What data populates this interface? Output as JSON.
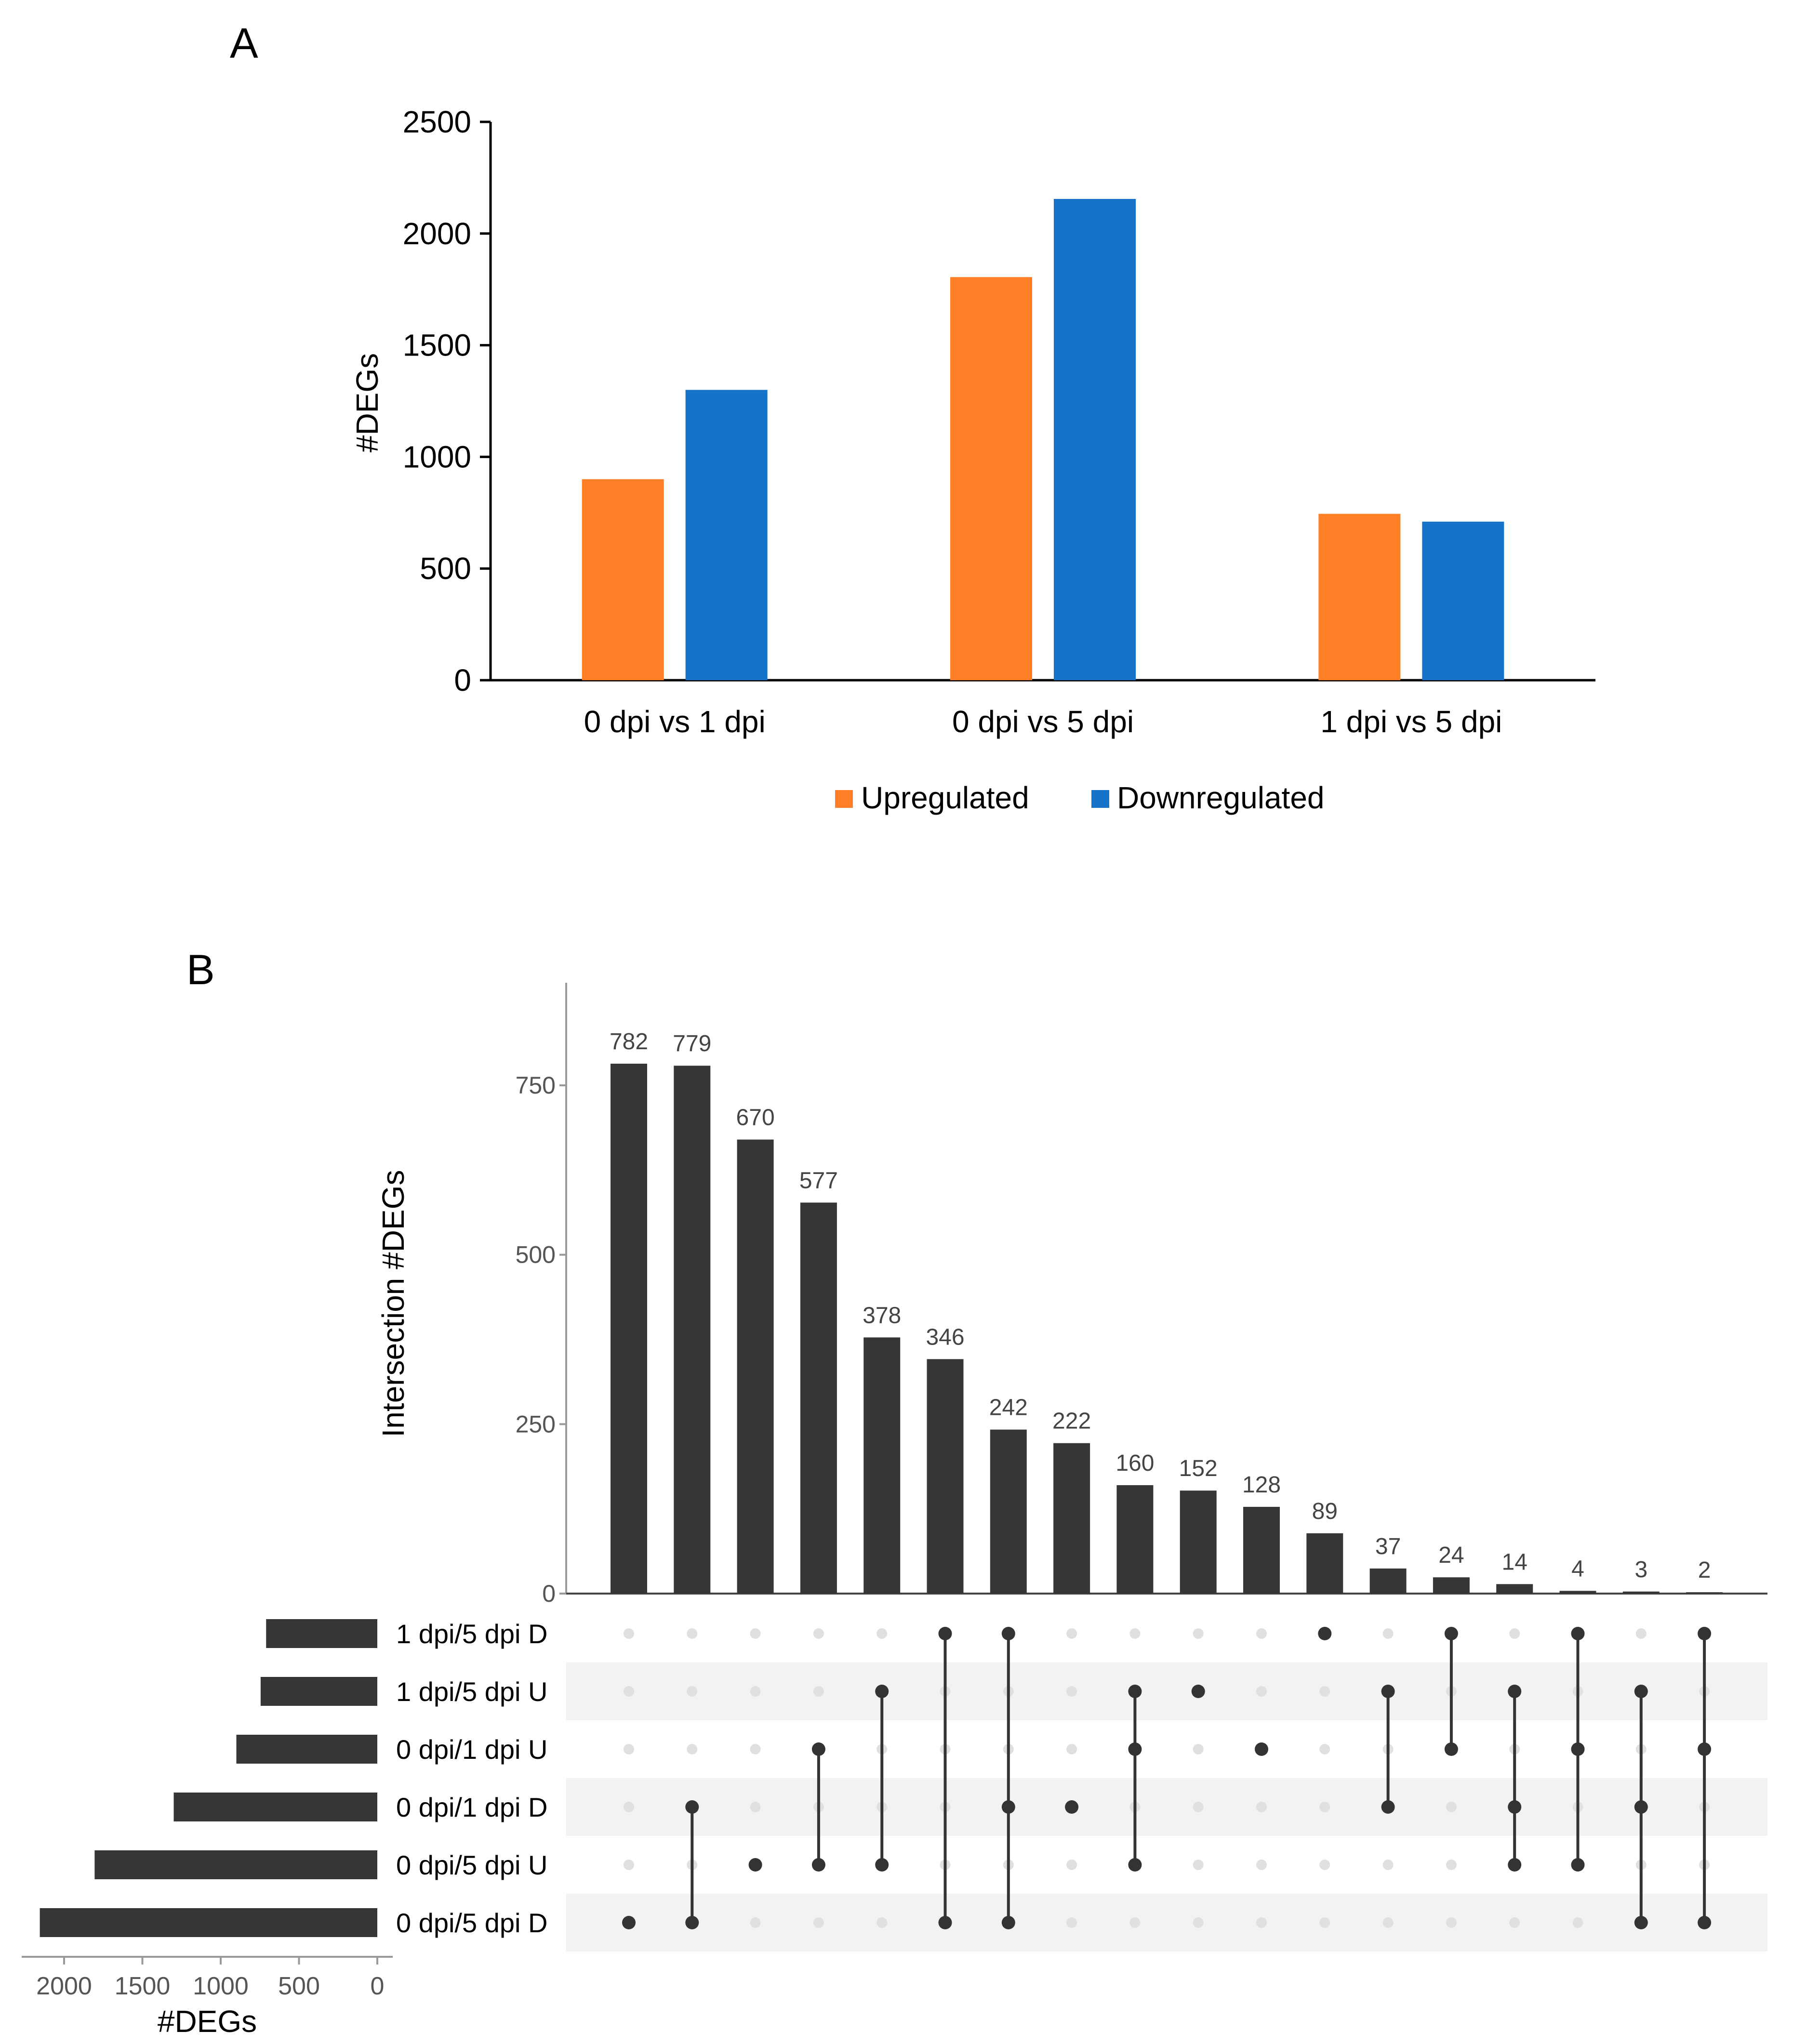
{
  "panels": {
    "a_label": "A",
    "b_label": "B"
  },
  "chart_data": [
    {
      "type": "bar",
      "title": "",
      "categories": [
        "0 dpi vs 1 dpi",
        "0 dpi vs 5 dpi",
        "1 dpi vs 5 dpi"
      ],
      "series": [
        {
          "name": "Upregulated",
          "color": "#FF7F27",
          "values": [
            900,
            1805,
            745
          ]
        },
        {
          "name": "Downregulated",
          "color": "#1673C9",
          "values": [
            1300,
            2155,
            710
          ]
        }
      ],
      "ylabel": "#DEGs",
      "xlabel": "",
      "ylim": [
        0,
        2500
      ],
      "yticks": [
        "0",
        "500",
        "1000",
        "1500",
        "2000",
        "2500"
      ],
      "legend": "bottom"
    },
    {
      "type": "bar",
      "subtype": "upset-intersections",
      "values": [
        782,
        779,
        670,
        577,
        378,
        346,
        242,
        222,
        160,
        152,
        128,
        89,
        37,
        24,
        14,
        4,
        3,
        2
      ],
      "labels": [
        "782",
        "779",
        "670",
        "577",
        "378",
        "346",
        "242",
        "222",
        "160",
        "152",
        "128",
        "89",
        "37",
        "24",
        "14",
        "4",
        "3",
        "2"
      ],
      "ylabel": "Intersection #DEGs",
      "ylim": [
        0,
        880
      ],
      "yticks": [
        "0",
        "250",
        "500",
        "750"
      ],
      "bar_color": "#363636"
    },
    {
      "type": "bar",
      "subtype": "upset-set-sizes",
      "sets": [
        "1 dpi/5 dpi D",
        "1 dpi/5 dpi U",
        "0 dpi/1 dpi U",
        "0 dpi/1 dpi D",
        "0 dpi/5 dpi U",
        "0 dpi/5 dpi D"
      ],
      "values": [
        710,
        745,
        900,
        1300,
        1805,
        2155
      ],
      "xlabel": "#DEGs",
      "xlim": [
        2250,
        0
      ],
      "xticks": [
        "2000",
        "1500",
        "1000",
        "500",
        "0"
      ]
    },
    {
      "type": "table",
      "subtype": "upset-membership-matrix",
      "sets": [
        "1 dpi/5 dpi D",
        "1 dpi/5 dpi U",
        "0 dpi/1 dpi U",
        "0 dpi/1 dpi D",
        "0 dpi/5 dpi U",
        "0 dpi/5 dpi D"
      ],
      "memberships": [
        [
          5
        ],
        [
          3,
          5
        ],
        [
          4
        ],
        [
          2,
          4
        ],
        [
          1,
          4
        ],
        [
          0,
          5
        ],
        [
          0,
          3,
          5
        ],
        [
          3
        ],
        [
          1,
          2,
          4
        ],
        [
          1
        ],
        [
          2
        ],
        [
          0
        ],
        [
          1,
          3
        ],
        [
          0,
          2
        ],
        [
          1,
          3,
          4
        ],
        [
          0,
          2,
          4
        ],
        [
          1,
          3,
          5
        ],
        [
          0,
          2,
          5
        ]
      ]
    }
  ]
}
